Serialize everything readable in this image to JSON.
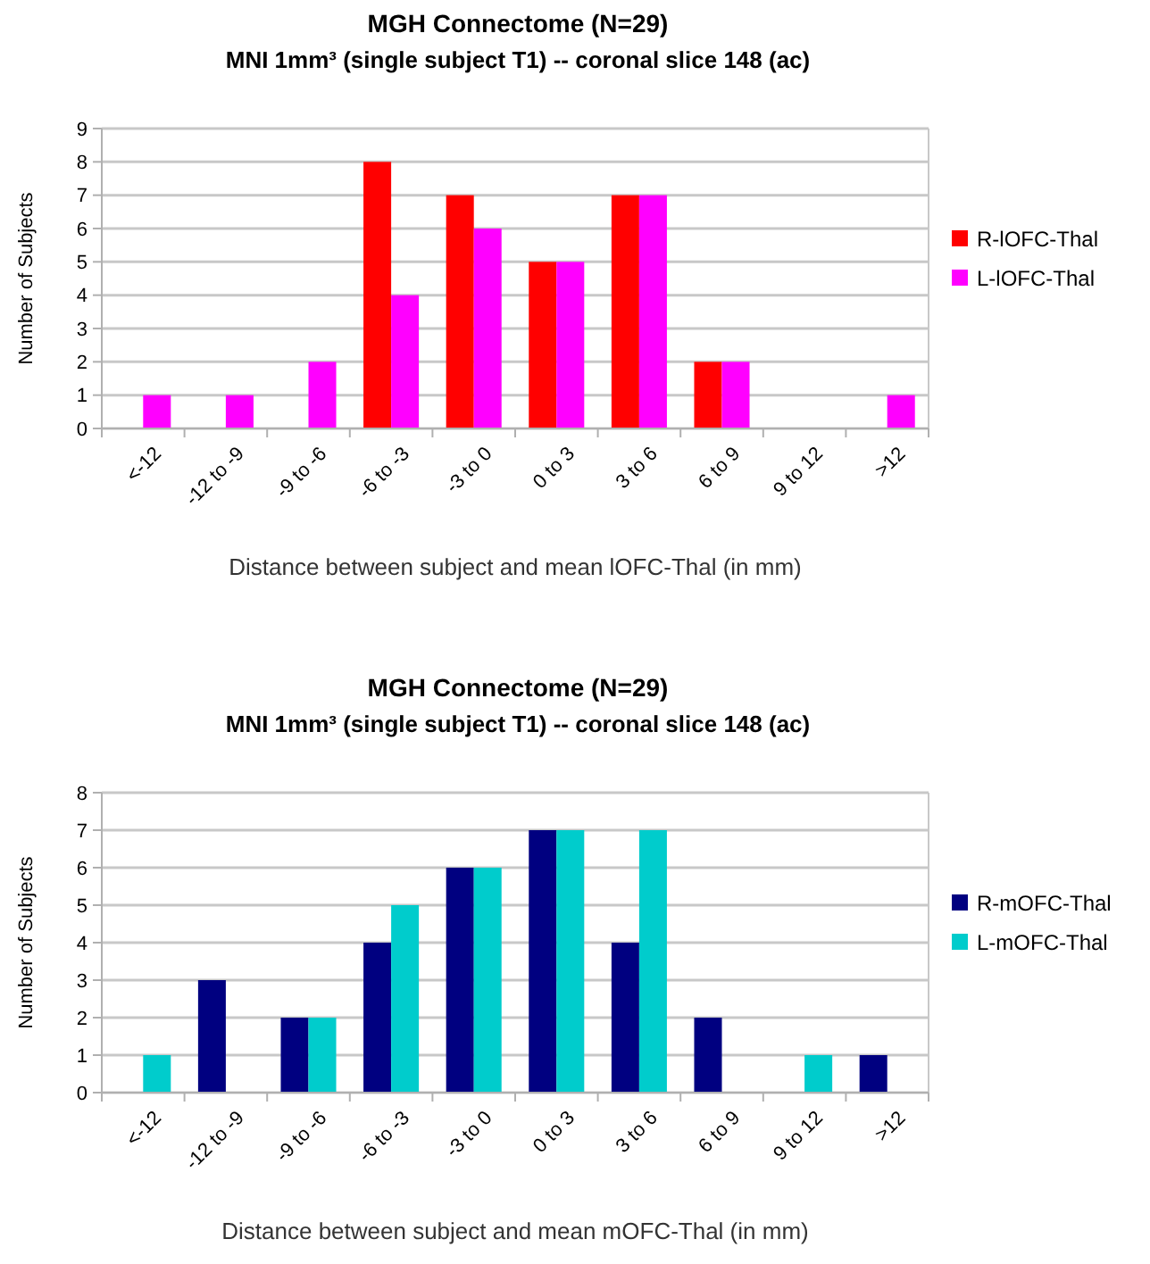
{
  "chart_data": [
    {
      "type": "bar",
      "title": "MGH Connectome (N=29)",
      "subtitle": "MNI 1mm³ (single subject T1) -- coronal slice 148 (ac)",
      "xlabel": "Distance between subject and mean lOFC-Thal (in mm)",
      "ylabel": "Number of Subjects",
      "categories": [
        "<-12",
        "-12 to -9",
        "-9 to -6",
        "-6 to -3",
        "-3 to 0",
        "0 to 3",
        "3 to 6",
        "6 to 9",
        "9 to 12",
        ">12"
      ],
      "series": [
        {
          "name": "R-lOFC-Thal",
          "color": "#ff0000",
          "values": [
            0,
            0,
            0,
            8,
            7,
            5,
            7,
            2,
            0,
            0
          ]
        },
        {
          "name": "L-lOFC-Thal",
          "color": "#ff00ff",
          "values": [
            1,
            1,
            2,
            4,
            6,
            5,
            7,
            2,
            0,
            1
          ]
        }
      ],
      "ylim": [
        0,
        9
      ],
      "yticks": [
        0,
        1,
        2,
        3,
        4,
        5,
        6,
        7,
        8,
        9
      ],
      "grid": "y",
      "legend": "right"
    },
    {
      "type": "bar",
      "title": "MGH Connectome (N=29)",
      "subtitle": "MNI 1mm³ (single subject T1) -- coronal slice 148 (ac)",
      "xlabel": "Distance between subject and mean mOFC-Thal (in mm)",
      "ylabel": "Number of Subjects",
      "categories": [
        "<-12",
        "-12 to -9",
        "-9 to -6",
        "-6 to -3",
        "-3 to 0",
        "0 to 3",
        "3 to 6",
        "6 to 9",
        "9 to 12",
        ">12"
      ],
      "series": [
        {
          "name": "R-mOFC-Thal",
          "color": "#000080",
          "values": [
            0,
            3,
            2,
            4,
            6,
            7,
            4,
            2,
            0,
            1
          ]
        },
        {
          "name": "L-mOFC-Thal",
          "color": "#00cccc",
          "values": [
            1,
            0,
            2,
            5,
            6,
            7,
            7,
            0,
            1,
            0
          ]
        }
      ],
      "ylim": [
        0,
        8
      ],
      "yticks": [
        0,
        1,
        2,
        3,
        4,
        5,
        6,
        7,
        8
      ],
      "grid": "y",
      "legend": "right"
    }
  ]
}
